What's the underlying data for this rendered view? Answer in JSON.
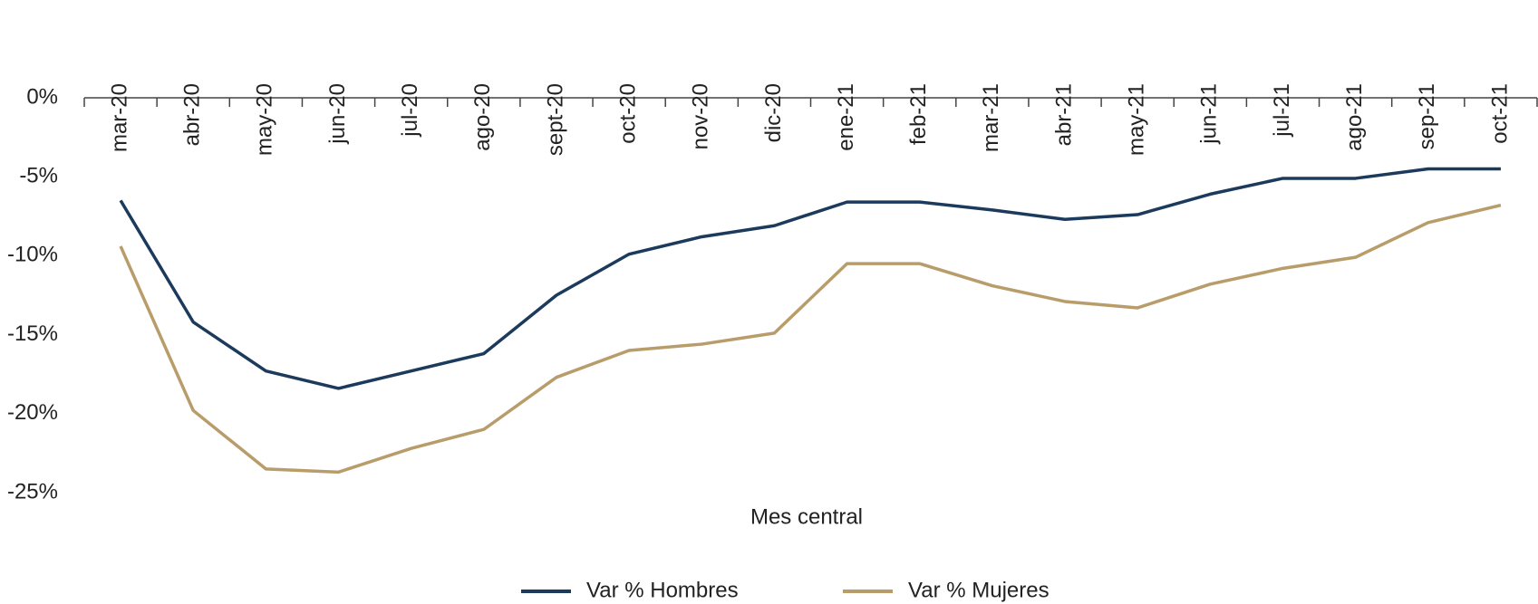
{
  "chart_data": {
    "type": "line",
    "x_label": "Mes central",
    "categories": [
      "mar-20",
      "abr-20",
      "may-20",
      "jun-20",
      "jul-20",
      "ago-20",
      "sept-20",
      "oct-20",
      "nov-20",
      "dic-20",
      "ene-21",
      "feb-21",
      "mar-21",
      "abr-21",
      "may-21",
      "jun-21",
      "jul-21",
      "ago-21",
      "sep-21",
      "oct-21"
    ],
    "series": [
      {
        "name": "Var % Hombres",
        "color": "#1b3a5c",
        "values": [
          -6.5,
          -14.2,
          -17.3,
          -18.4,
          -17.3,
          -16.2,
          -12.5,
          -9.9,
          -8.8,
          -8.1,
          -6.6,
          -6.6,
          -7.1,
          -7.7,
          -7.4,
          -6.1,
          -5.1,
          -5.1,
          -4.5,
          -4.5
        ]
      },
      {
        "name": "Var % Mujeres",
        "color": "#b89c6a",
        "values": [
          -9.4,
          -19.8,
          -23.5,
          -23.7,
          -22.2,
          -21.0,
          -17.7,
          -16.0,
          -15.6,
          -14.9,
          -10.5,
          -10.5,
          -11.9,
          -12.9,
          -13.3,
          -11.8,
          -10.8,
          -10.1,
          -7.9,
          -6.8
        ]
      }
    ],
    "ylim": [
      -25,
      0
    ],
    "yticks": [
      {
        "value": 0,
        "label": "0%"
      },
      {
        "value": -5,
        "label": "-5%"
      },
      {
        "value": -10,
        "label": "-10%"
      },
      {
        "value": -15,
        "label": "-15%"
      },
      {
        "value": -20,
        "label": "-20%"
      },
      {
        "value": -25,
        "label": "-25%"
      }
    ],
    "grid": false
  }
}
